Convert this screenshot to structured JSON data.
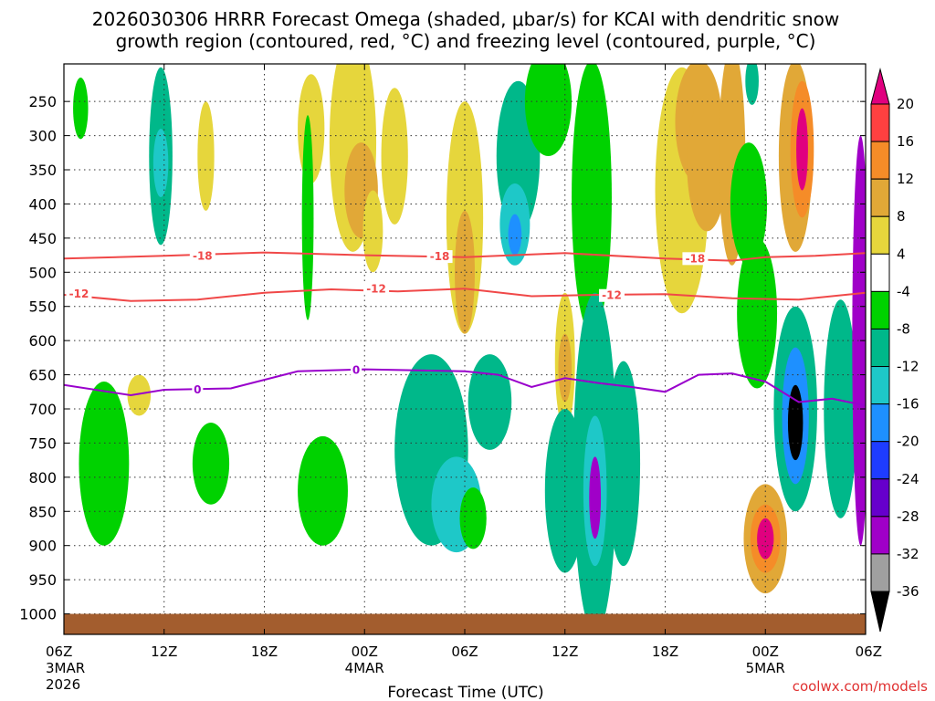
{
  "chart_data": {
    "type": "heatmap",
    "title_line1": "2026030306 HRRR Forecast Omega (shaded, μbar/s) for KCAI with dendritic snow",
    "title_line2": "growth region (contoured, red, °C) and freezing level (contoured, purple, °C)",
    "xlabel": "Forecast Time (UTC)",
    "ylabel": "",
    "x_hours_range": [
      0,
      48
    ],
    "y_pressure_range": [
      195,
      1030
    ],
    "y_ticks": [
      250,
      300,
      350,
      400,
      450,
      500,
      550,
      600,
      650,
      700,
      750,
      800,
      850,
      900,
      950,
      1000
    ],
    "x_ticks": [
      {
        "hour": 0,
        "label": "06Z",
        "sub1": "3MAR",
        "sub2": "2026"
      },
      {
        "hour": 6,
        "label": "12Z",
        "sub1": "",
        "sub2": ""
      },
      {
        "hour": 12,
        "label": "18Z",
        "sub1": "",
        "sub2": ""
      },
      {
        "hour": 18,
        "label": "00Z",
        "sub1": "4MAR",
        "sub2": ""
      },
      {
        "hour": 24,
        "label": "06Z",
        "sub1": "",
        "sub2": ""
      },
      {
        "hour": 30,
        "label": "12Z",
        "sub1": "",
        "sub2": ""
      },
      {
        "hour": 36,
        "label": "18Z",
        "sub1": "",
        "sub2": ""
      },
      {
        "hour": 42,
        "label": "00Z",
        "sub1": "5MAR",
        "sub2": ""
      },
      {
        "hour": 48,
        "label": "06Z",
        "sub1": "",
        "sub2": ""
      }
    ],
    "colorbar": {
      "labels": [
        "20",
        "16",
        "12",
        "8",
        "4",
        "-4",
        "-8",
        "-12",
        "-16",
        "-20",
        "-24",
        "-28",
        "-32",
        "-36"
      ],
      "bins": [
        {
          "color": "#e0007f"
        },
        {
          "color": "#ff4040"
        },
        {
          "color": "#f58c28"
        },
        {
          "color": "#e1a837"
        },
        {
          "color": "#e6d63c"
        },
        {
          "color": "#ffffff"
        },
        {
          "color": "#00d200"
        },
        {
          "color": "#00b88a"
        },
        {
          "color": "#1ec8c8"
        },
        {
          "color": "#1e90ff"
        },
        {
          "color": "#1e3cff"
        },
        {
          "color": "#6600cc"
        },
        {
          "color": "#a000c8"
        },
        {
          "color": "#a0a0a0"
        },
        {
          "color": "#000000"
        }
      ]
    },
    "omega_blobs": [
      {
        "hour": 1.0,
        "p": 260,
        "hw": 0.45,
        "hp": 45,
        "v": -6
      },
      {
        "hour": 5.8,
        "p": 330,
        "hw": 0.7,
        "hp": 130,
        "v": -9
      },
      {
        "hour": 5.8,
        "p": 340,
        "hw": 0.45,
        "hp": 50,
        "v": -12
      },
      {
        "hour": 2.4,
        "p": 780,
        "hw": 1.5,
        "hp": 120,
        "v": -7
      },
      {
        "hour": 4.5,
        "p": 680,
        "hw": 0.7,
        "hp": 30,
        "v": 5
      },
      {
        "hour": 8.5,
        "p": 330,
        "hw": 0.5,
        "hp": 80,
        "v": 5
      },
      {
        "hour": 8.8,
        "p": 780,
        "hw": 1.1,
        "hp": 60,
        "v": -7
      },
      {
        "hour": 14.8,
        "p": 290,
        "hw": 0.8,
        "hp": 80,
        "v": 5
      },
      {
        "hour": 14.6,
        "p": 420,
        "hw": 0.35,
        "hp": 150,
        "v": -6
      },
      {
        "hour": 17.3,
        "p": 310,
        "hw": 1.4,
        "hp": 160,
        "v": 6
      },
      {
        "hour": 17.8,
        "p": 380,
        "hw": 1.0,
        "hp": 70,
        "v": 9
      },
      {
        "hour": 18.5,
        "p": 440,
        "hw": 0.6,
        "hp": 60,
        "v": 6
      },
      {
        "hour": 15.5,
        "p": 820,
        "hw": 1.5,
        "hp": 80,
        "v": -7
      },
      {
        "hour": 19.8,
        "p": 330,
        "hw": 0.8,
        "hp": 100,
        "v": 5
      },
      {
        "hour": 22.0,
        "p": 760,
        "hw": 2.2,
        "hp": 140,
        "v": -8
      },
      {
        "hour": 23.5,
        "p": 840,
        "hw": 1.5,
        "hp": 70,
        "v": -12
      },
      {
        "hour": 24.5,
        "p": 860,
        "hw": 0.8,
        "hp": 45,
        "v": -7
      },
      {
        "hour": 24.0,
        "p": 420,
        "hw": 1.1,
        "hp": 170,
        "v": 6
      },
      {
        "hour": 24.0,
        "p": 500,
        "hw": 0.6,
        "hp": 90,
        "v": 9
      },
      {
        "hour": 25.5,
        "p": 690,
        "hw": 1.3,
        "hp": 70,
        "v": -8
      },
      {
        "hour": 27.2,
        "p": 330,
        "hw": 1.3,
        "hp": 110,
        "v": -8
      },
      {
        "hour": 27.0,
        "p": 430,
        "hw": 0.9,
        "hp": 60,
        "v": -12
      },
      {
        "hour": 27.0,
        "p": 445,
        "hw": 0.4,
        "hp": 30,
        "v": -18
      },
      {
        "hour": 29.0,
        "p": 250,
        "hw": 1.4,
        "hp": 80,
        "v": -7
      },
      {
        "hour": 30.0,
        "p": 630,
        "hw": 0.6,
        "hp": 100,
        "v": 6
      },
      {
        "hour": 30.0,
        "p": 640,
        "hw": 0.4,
        "hp": 50,
        "v": 10
      },
      {
        "hour": 30.0,
        "p": 820,
        "hw": 1.2,
        "hp": 120,
        "v": -8
      },
      {
        "hour": 31.6,
        "p": 390,
        "hw": 1.2,
        "hp": 200,
        "v": -7
      },
      {
        "hour": 31.8,
        "p": 780,
        "hw": 1.3,
        "hp": 250,
        "v": -9
      },
      {
        "hour": 31.8,
        "p": 820,
        "hw": 0.7,
        "hp": 110,
        "v": -14
      },
      {
        "hour": 31.8,
        "p": 830,
        "hw": 0.35,
        "hp": 60,
        "v": -30
      },
      {
        "hour": 33.5,
        "p": 780,
        "hw": 1.0,
        "hp": 150,
        "v": -8
      },
      {
        "hour": 37.0,
        "p": 380,
        "hw": 1.6,
        "hp": 180,
        "v": 7
      },
      {
        "hour": 38.0,
        "p": 280,
        "hw": 1.4,
        "hp": 90,
        "v": 8
      },
      {
        "hour": 38.5,
        "p": 340,
        "hw": 1.2,
        "hp": 100,
        "v": 11
      },
      {
        "hour": 40.0,
        "p": 330,
        "hw": 0.8,
        "hp": 160,
        "v": 9
      },
      {
        "hour": 41.0,
        "p": 400,
        "hw": 1.1,
        "hp": 90,
        "v": -7
      },
      {
        "hour": 41.2,
        "p": 220,
        "hw": 0.4,
        "hp": 35,
        "v": -9
      },
      {
        "hour": 41.5,
        "p": 560,
        "hw": 1.2,
        "hp": 110,
        "v": -7
      },
      {
        "hour": 42.0,
        "p": 890,
        "hw": 1.3,
        "hp": 80,
        "v": 8
      },
      {
        "hour": 42.0,
        "p": 890,
        "hw": 0.9,
        "hp": 50,
        "v": 15
      },
      {
        "hour": 42.0,
        "p": 890,
        "hw": 0.5,
        "hp": 30,
        "v": 21
      },
      {
        "hour": 43.8,
        "p": 330,
        "hw": 1.0,
        "hp": 140,
        "v": 10
      },
      {
        "hour": 44.2,
        "p": 320,
        "hw": 0.7,
        "hp": 100,
        "v": 15
      },
      {
        "hour": 44.2,
        "p": 320,
        "hw": 0.35,
        "hp": 60,
        "v": 21
      },
      {
        "hour": 43.8,
        "p": 700,
        "hw": 1.3,
        "hp": 150,
        "v": -9
      },
      {
        "hour": 43.8,
        "p": 710,
        "hw": 0.8,
        "hp": 100,
        "v": -18
      },
      {
        "hour": 43.8,
        "p": 720,
        "hw": 0.45,
        "hp": 55,
        "v": -36
      },
      {
        "hour": 46.5,
        "p": 700,
        "hw": 1.0,
        "hp": 160,
        "v": -8
      },
      {
        "hour": 47.7,
        "p": 600,
        "hw": 0.5,
        "hp": 300,
        "v": -30
      }
    ],
    "dgz_minus18": {
      "label": "-18",
      "points": [
        [
          0,
          480
        ],
        [
          6,
          476
        ],
        [
          12,
          471
        ],
        [
          18,
          475
        ],
        [
          24,
          478
        ],
        [
          30,
          472
        ],
        [
          36,
          480
        ],
        [
          40,
          483
        ],
        [
          42,
          478
        ],
        [
          45,
          476
        ],
        [
          48,
          472
        ]
      ]
    },
    "dgz_minus12": {
      "label": "-12",
      "points": [
        [
          0,
          533
        ],
        [
          4,
          542
        ],
        [
          8,
          540
        ],
        [
          12,
          530
        ],
        [
          16,
          525
        ],
        [
          20,
          528
        ],
        [
          24,
          524
        ],
        [
          28,
          535
        ],
        [
          32,
          533
        ],
        [
          36,
          532
        ],
        [
          40,
          538
        ],
        [
          44,
          540
        ],
        [
          48,
          530
        ]
      ]
    },
    "freezing_level": {
      "label": "0",
      "points": [
        [
          0,
          665
        ],
        [
          4,
          680
        ],
        [
          6,
          672
        ],
        [
          10,
          670
        ],
        [
          14,
          645
        ],
        [
          18,
          642
        ],
        [
          24,
          645
        ],
        [
          26,
          650
        ],
        [
          28,
          668
        ],
        [
          30,
          655
        ],
        [
          32,
          662
        ],
        [
          34,
          668
        ],
        [
          36,
          675
        ],
        [
          38,
          650
        ],
        [
          40,
          648
        ],
        [
          42,
          660
        ],
        [
          44,
          690
        ],
        [
          46,
          685
        ],
        [
          48,
          695
        ]
      ]
    },
    "contour_labels": [
      {
        "text": "-18",
        "hour": 8.3,
        "p": 476
      },
      {
        "text": "-18",
        "hour": 22.5,
        "p": 477
      },
      {
        "text": "-18",
        "hour": 37.8,
        "p": 480
      },
      {
        "text": "-12",
        "hour": 0.9,
        "p": 532
      },
      {
        "text": "-12",
        "hour": 18.7,
        "p": 524
      },
      {
        "text": "-12",
        "hour": 32.8,
        "p": 534
      },
      {
        "text": "0",
        "hour": 8.0,
        "p": 672
      },
      {
        "text": "0",
        "hour": 17.5,
        "p": 643
      }
    ],
    "colors": {
      "dgz": "#f04848",
      "freezing": "#9900cc",
      "terrain": "#a35d2e"
    },
    "credit": "coolwx.com/models",
    "credit_color": "#e03030"
  }
}
